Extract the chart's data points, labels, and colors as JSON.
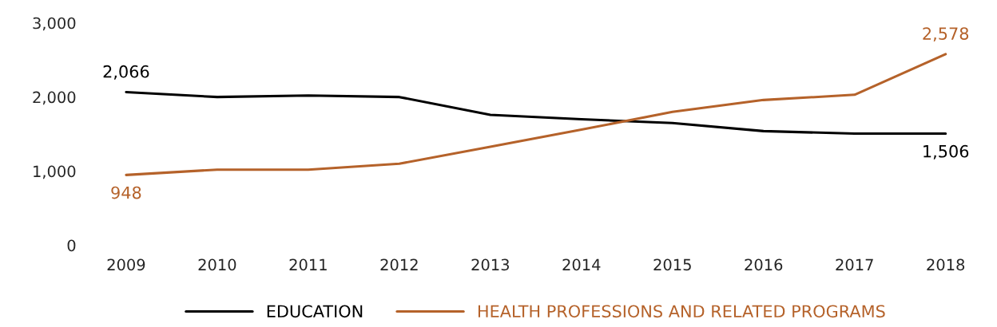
{
  "chart_data": {
    "type": "line",
    "categories": [
      "2009",
      "2010",
      "2011",
      "2012",
      "2013",
      "2014",
      "2015",
      "2016",
      "2017",
      "2018"
    ],
    "series": [
      {
        "name": "EDUCATION",
        "color": "#000000",
        "values": [
          2066,
          2000,
          2020,
          2000,
          1760,
          1700,
          1650,
          1540,
          1506,
          1506
        ],
        "value_labels": [
          "2,066",
          null,
          null,
          null,
          null,
          null,
          null,
          null,
          null,
          "1,506"
        ]
      },
      {
        "name": "HEALTH PROFESSIONS AND RELATED PROGRAMS",
        "color": "#b5622a",
        "values": [
          948,
          1020,
          1020,
          1100,
          1330,
          1560,
          1800,
          1960,
          2030,
          2578
        ],
        "value_labels": [
          "948",
          null,
          null,
          null,
          null,
          null,
          null,
          null,
          null,
          "2,578"
        ]
      }
    ],
    "ylim": [
      0,
      3000
    ],
    "yticks": [
      0,
      {
        "value": 1000,
        "label": "1,000"
      },
      {
        "value": 2000,
        "label": "2,000"
      },
      {
        "value": 3000,
        "label": "3,000"
      }
    ],
    "grid": false,
    "legend": "bottom",
    "marker": "none",
    "line_style": "solid"
  }
}
